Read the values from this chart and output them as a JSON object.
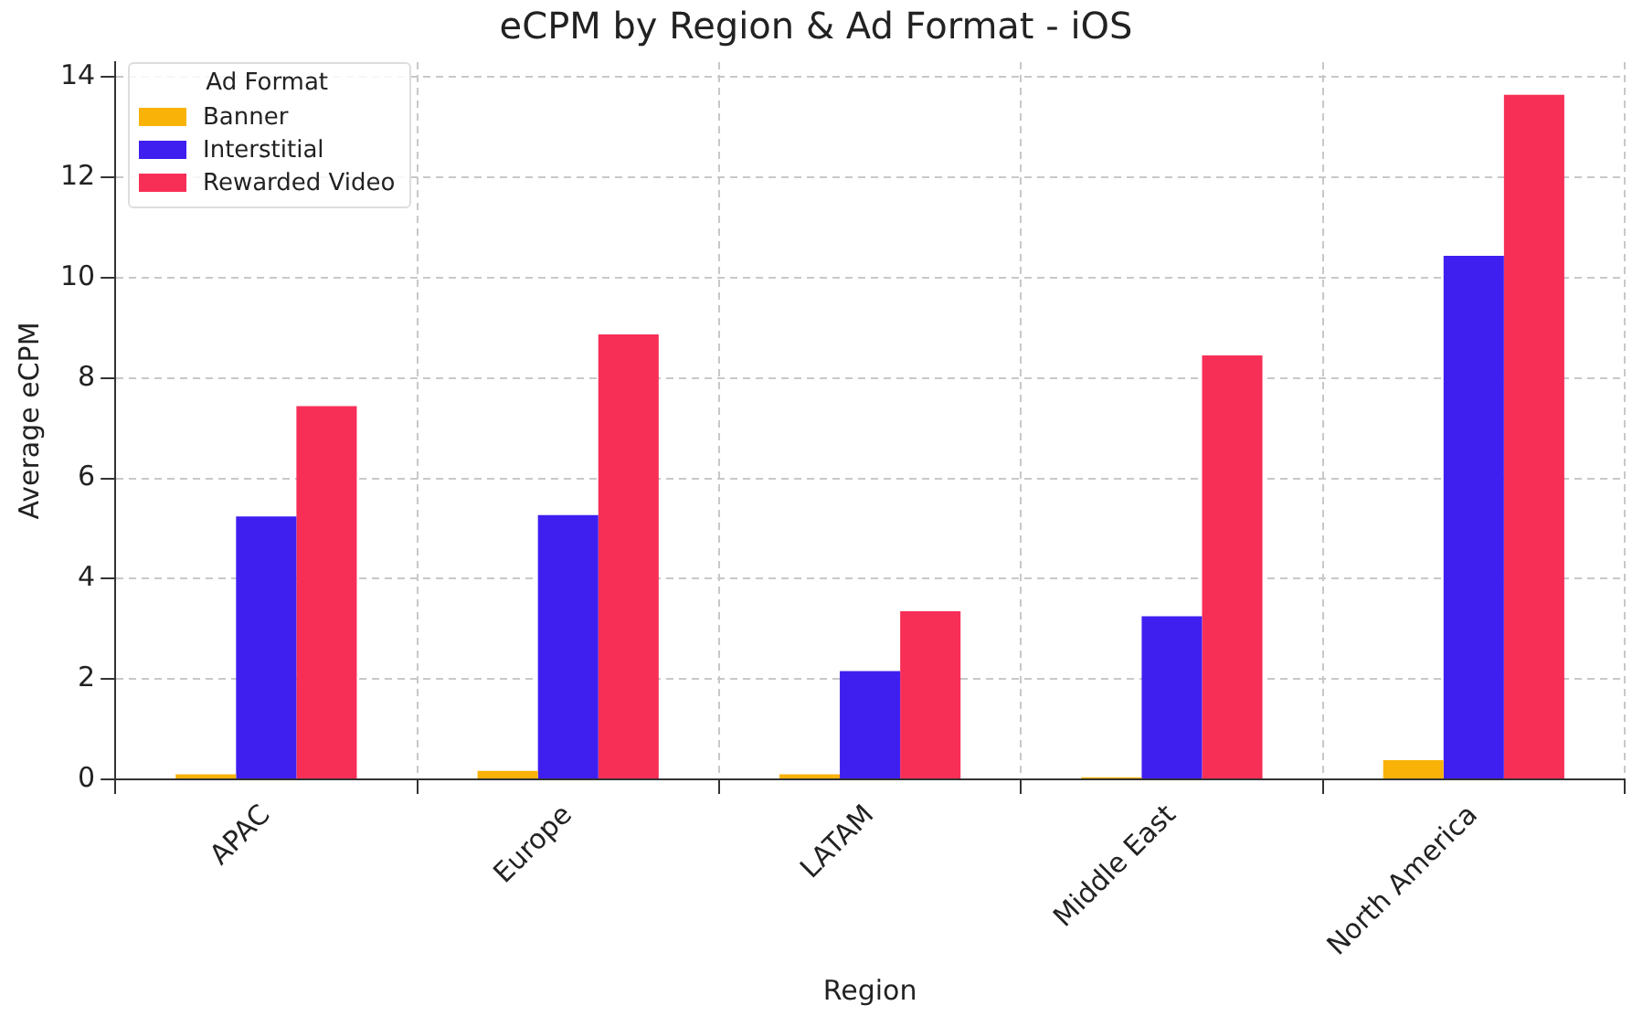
{
  "chart_data": {
    "type": "bar",
    "title": "eCPM by Region & Ad Format - iOS",
    "xlabel": "Region",
    "ylabel": "Average eCPM",
    "legend_title": "Ad Format",
    "legend": "top left",
    "grid": true,
    "categories": [
      "APAC",
      "Europe",
      "LATAM",
      "Middle East",
      "North America"
    ],
    "ylim": [
      0,
      14.3
    ],
    "yticks": [
      0,
      2,
      4,
      6,
      8,
      10,
      12,
      14
    ],
    "series": [
      {
        "name": "Banner",
        "color": "#f9b208",
        "values": [
          0.1,
          0.17,
          0.1,
          0.04,
          0.38
        ]
      },
      {
        "name": "Interstitial",
        "color": "#3f1ff0",
        "values": [
          5.24,
          5.27,
          2.16,
          3.25,
          10.44
        ]
      },
      {
        "name": "Rewarded Video",
        "color": "#f72f57",
        "values": [
          7.44,
          8.87,
          3.35,
          8.45,
          13.65
        ]
      }
    ]
  }
}
